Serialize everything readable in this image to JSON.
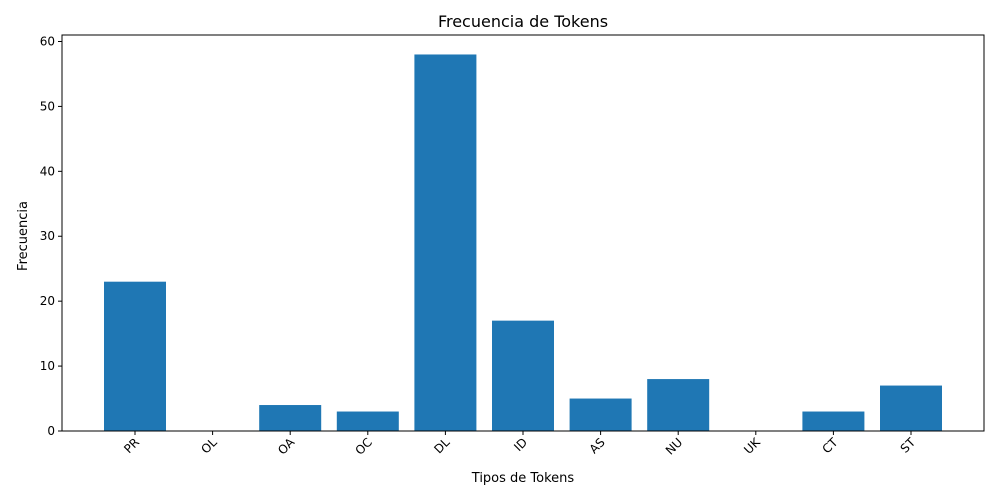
{
  "chart_data": {
    "type": "bar",
    "title": "Frecuencia de Tokens",
    "xlabel": "Tipos de Tokens",
    "ylabel": "Frecuencia",
    "categories": [
      "PR",
      "OL",
      "OA",
      "OC",
      "DL",
      "ID",
      "AS",
      "NU",
      "UK",
      "CT",
      "ST"
    ],
    "values": [
      23,
      0,
      4,
      3,
      58,
      17,
      5,
      8,
      0,
      3,
      7
    ],
    "ylim": [
      0,
      61
    ],
    "yticks": [
      0,
      10,
      20,
      30,
      40,
      50,
      60
    ],
    "grid": false,
    "bar_color": "#1f77b4"
  }
}
